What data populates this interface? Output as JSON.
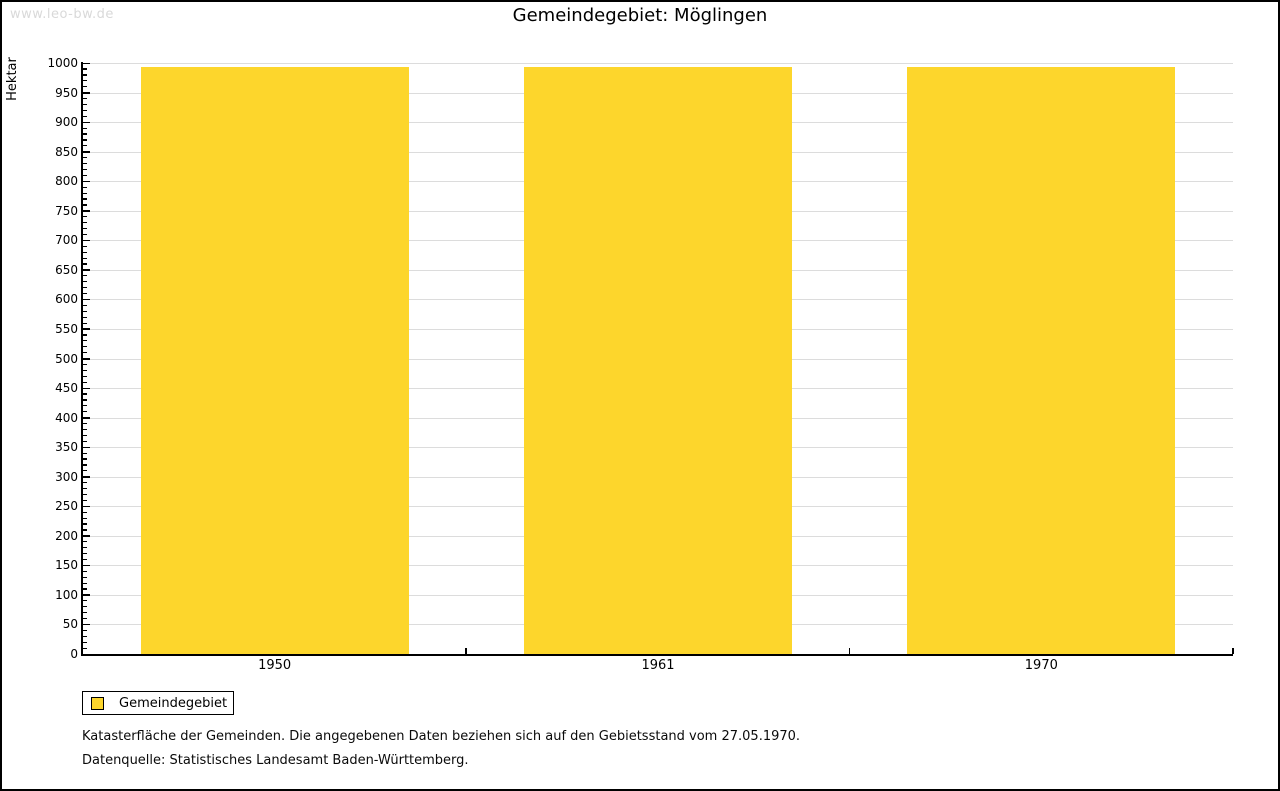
{
  "watermark": {
    "text": "www.leo-bw.de"
  },
  "chart_data": {
    "type": "bar",
    "title": "Gemeindegebiet: Möglingen",
    "categories": [
      "1950",
      "1961",
      "1970"
    ],
    "series": [
      {
        "name": "Gemeindegebiet",
        "values": [
          993,
          993,
          993
        ]
      }
    ],
    "ylabel": "Hektar",
    "xlabel": "",
    "ylim": [
      0,
      1000
    ],
    "ytick_step": 50,
    "ytick_minor_step": 10,
    "grid": true,
    "legend_position": "bottom-left",
    "bar_color": "#FDD62C",
    "grid_color": "#DCDCDC",
    "axis_color": "#000000"
  },
  "footer": {
    "line1": "Katasterfläche der Gemeinden. Die angegebenen Daten beziehen sich auf den Gebietsstand vom 27.05.1970.",
    "line2": "Datenquelle: Statistisches Landesamt Baden-Württemberg."
  }
}
